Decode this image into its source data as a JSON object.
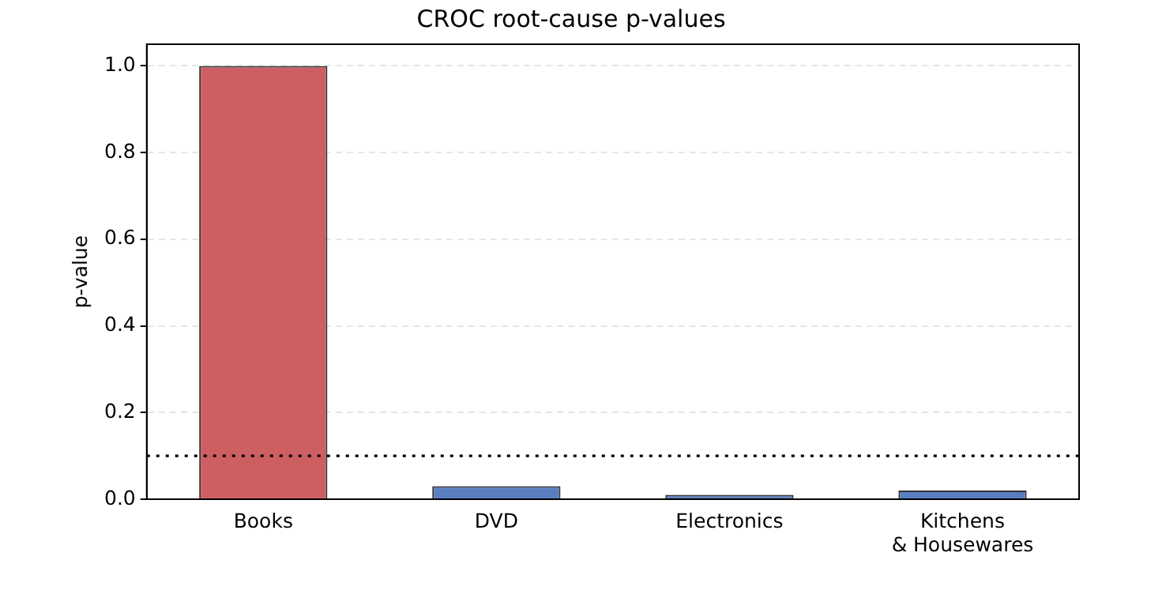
{
  "chart_data": {
    "type": "bar",
    "title": "CROC root-cause p-values",
    "ylabel": "p-value",
    "categories": [
      "Books",
      "DVD",
      "Electronics",
      "Kitchens\n& Housewares"
    ],
    "values": [
      1.0,
      0.03,
      0.01,
      0.02
    ],
    "colors": [
      "#cd5f63",
      "#5a7fc0",
      "#5a7fc0",
      "#5a7fc0"
    ],
    "ylim": [
      0,
      1.05
    ],
    "yticks": [
      {
        "value": 0,
        "label": "0.0"
      },
      {
        "value": 0.2,
        "label": "0.2"
      },
      {
        "value": 0.4,
        "label": "0.4"
      },
      {
        "value": 0.6,
        "label": "0.6"
      },
      {
        "value": 0.8,
        "label": "0.8"
      },
      {
        "value": 1.0,
        "label": "1.0"
      }
    ],
    "grid": "y",
    "legend": false,
    "ref_lines": [
      {
        "axis": "y",
        "value": 0.1,
        "color": "#000000",
        "line_style": "dotted"
      }
    ]
  }
}
